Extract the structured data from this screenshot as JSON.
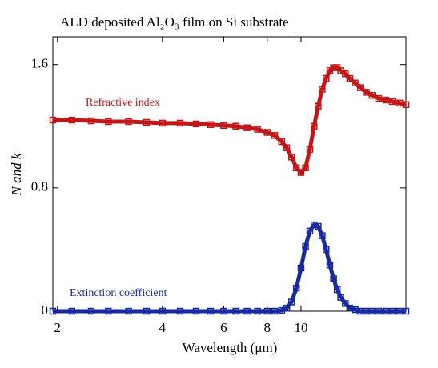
{
  "chart_data": {
    "type": "scatter",
    "title": "ALD deposited Al₂O₃ film on Si substrate",
    "x_label": "Wavelength (μm)",
    "y_label": "N and k",
    "xscale": "log",
    "xlim": [
      1.94,
      20
    ],
    "xticks": [
      2,
      4,
      6,
      8,
      10
    ],
    "ylim": [
      0,
      1.78
    ],
    "yticks": [
      0,
      0.8,
      1.6
    ],
    "x": [
      1.94,
      2.2,
      2.5,
      2.8,
      3.2,
      3.6,
      4,
      4.5,
      5,
      5.5,
      6,
      6.5,
      7,
      7.5,
      8,
      8.4,
      8.8,
      9.1,
      9.4,
      9.7,
      10,
      10.3,
      10.6,
      10.9,
      11.2,
      11.5,
      11.8,
      12.1,
      12.4,
      12.7,
      13,
      13.4,
      13.8,
      14.3,
      14.8,
      15.4,
      16,
      16.7,
      17.5,
      18.3,
      19.2,
      20
    ],
    "series": [
      {
        "name": "Refractive index",
        "color": "#c01818",
        "values": [
          1.24,
          1.24,
          1.235,
          1.23,
          1.23,
          1.225,
          1.22,
          1.22,
          1.215,
          1.21,
          1.205,
          1.2,
          1.19,
          1.18,
          1.16,
          1.14,
          1.1,
          1.06,
          1.0,
          0.93,
          0.9,
          0.93,
          1.05,
          1.2,
          1.33,
          1.44,
          1.51,
          1.56,
          1.58,
          1.58,
          1.56,
          1.54,
          1.51,
          1.48,
          1.45,
          1.42,
          1.4,
          1.38,
          1.37,
          1.36,
          1.35,
          1.34
        ]
      },
      {
        "name": "Extinction coefficient",
        "color": "#1a2a9c",
        "values": [
          0,
          0,
          0,
          0,
          0,
          0,
          0,
          0,
          0,
          0,
          0,
          0,
          0,
          0,
          0,
          0,
          0.005,
          0.02,
          0.06,
          0.15,
          0.28,
          0.42,
          0.52,
          0.56,
          0.55,
          0.49,
          0.4,
          0.3,
          0.21,
          0.14,
          0.09,
          0.05,
          0.02,
          0.01,
          0,
          0,
          0,
          0,
          0,
          0,
          0,
          0
        ]
      }
    ]
  }
}
